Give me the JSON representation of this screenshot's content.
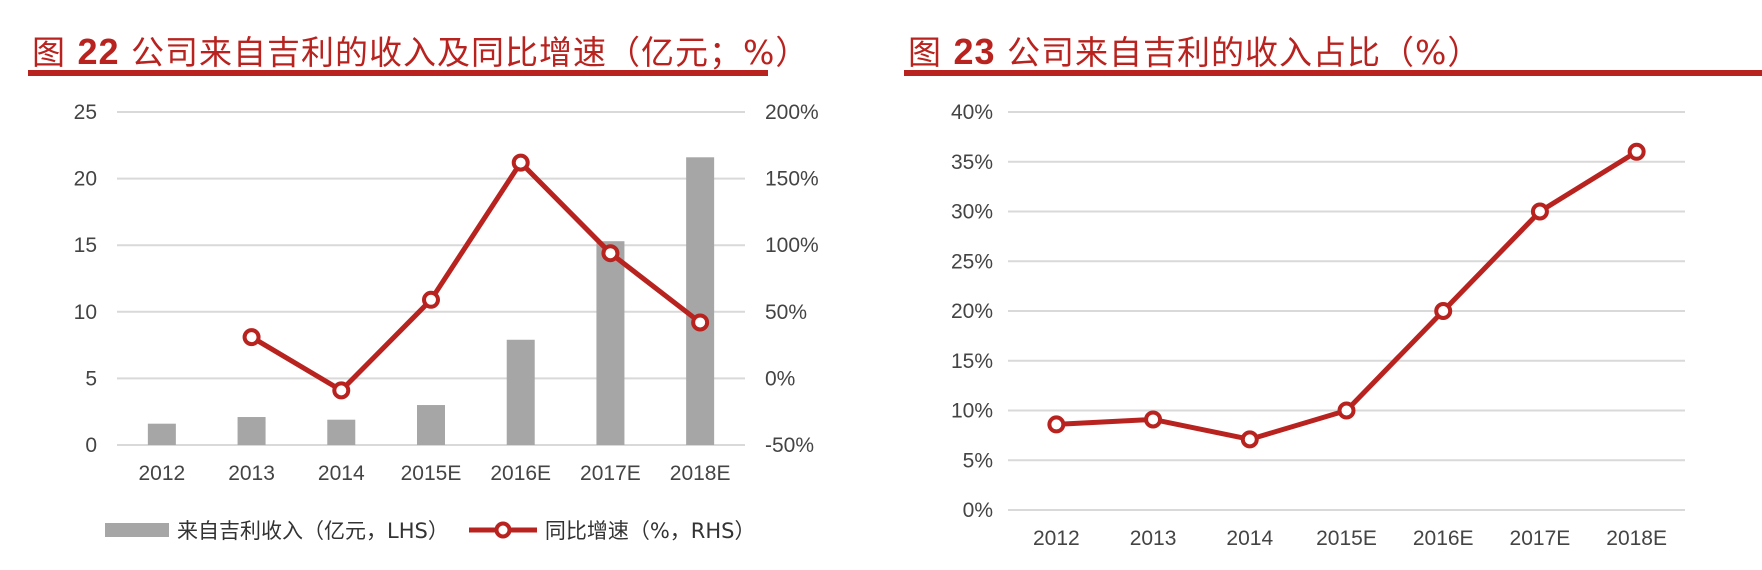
{
  "left_chart": {
    "fig_label": "图",
    "fig_number": "22",
    "title_text": "公司来自吉利的收入及同比增速（亿元；%）",
    "legend": {
      "bar_label": "来自吉利收入（亿元，LHS）",
      "line_label": "同比增速（%，RHS）"
    }
  },
  "right_chart": {
    "fig_label": "图",
    "fig_number": "23",
    "title_text": "公司来自吉利的收入占比（%）"
  },
  "colors": {
    "accent": "#b8231f",
    "bar": "#a6a6a6",
    "grid": "#d9d9d9",
    "tick_text": "#444444"
  },
  "chart_data": [
    {
      "type": "bar+line",
      "title": "图22 公司来自吉利的收入及同比增速（亿元；%）",
      "categories": [
        "2012",
        "2013",
        "2014",
        "2015E",
        "2016E",
        "2017E",
        "2018E"
      ],
      "series": [
        {
          "name": "来自吉利收入（亿元，LHS）",
          "type": "bar",
          "axis": "left",
          "values": [
            1.6,
            2.1,
            1.9,
            3.0,
            7.9,
            15.3,
            21.6
          ]
        },
        {
          "name": "同比增速（%，RHS）",
          "type": "line",
          "axis": "right",
          "values": [
            null,
            31,
            -9,
            59,
            162,
            94,
            42
          ]
        }
      ],
      "y_left": {
        "ticks": [
          "0",
          "5",
          "10",
          "15",
          "20",
          "25"
        ],
        "range": [
          0,
          25
        ]
      },
      "y_right": {
        "ticks": [
          "-50%",
          "0%",
          "50%",
          "100%",
          "150%",
          "200%"
        ],
        "range": [
          -50,
          200
        ]
      },
      "grid": true,
      "legend_position": "bottom"
    },
    {
      "type": "line",
      "title": "图23 公司来自吉利的收入占比（%）",
      "categories": [
        "2012",
        "2013",
        "2014",
        "2015E",
        "2016E",
        "2017E",
        "2018E"
      ],
      "series": [
        {
          "name": "收入占比",
          "values": [
            8.6,
            9.1,
            7.1,
            10.0,
            20.0,
            30.0,
            36.0
          ]
        }
      ],
      "y": {
        "ticks": [
          "0%",
          "5%",
          "10%",
          "15%",
          "20%",
          "25%",
          "30%",
          "35%",
          "40%"
        ],
        "range": [
          0,
          40
        ]
      },
      "grid": true
    }
  ]
}
